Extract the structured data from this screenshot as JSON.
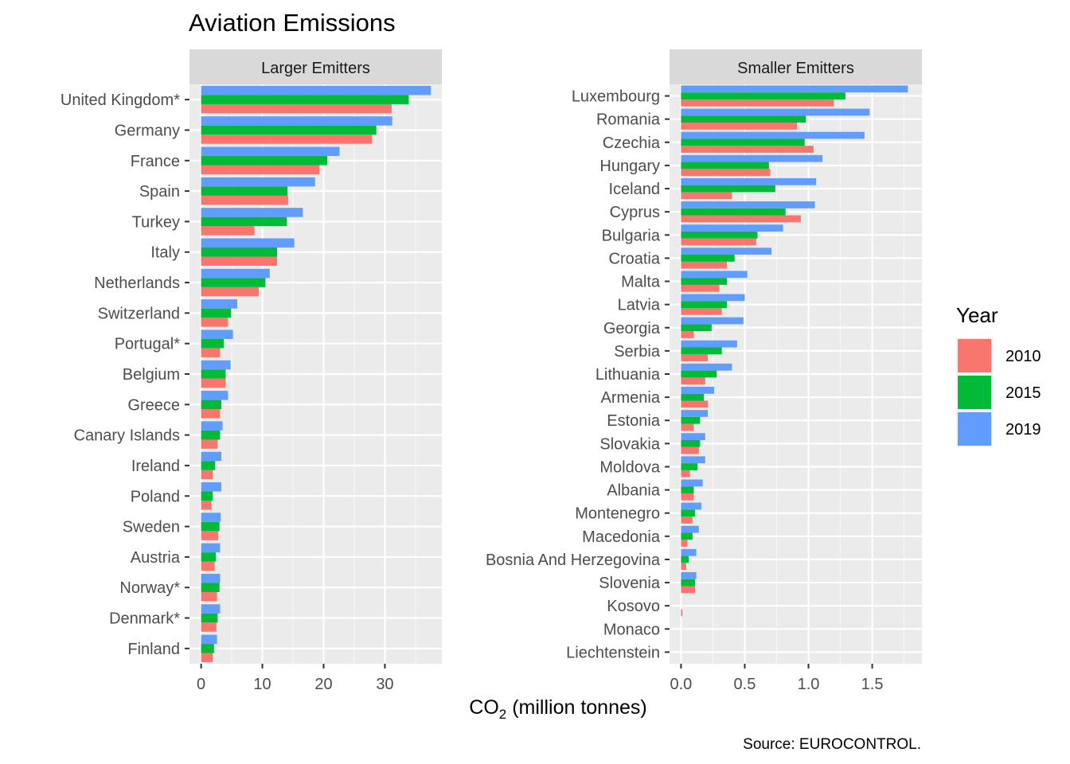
{
  "title": "Aviation Emissions",
  "x_axis_title": {
    "main": "CO",
    "subscript": "2",
    "rest": "  (million tonnes)"
  },
  "caption": "Source: EUROCONTROL.",
  "legend": {
    "title": "Year",
    "position": "right",
    "items": [
      {
        "label": "2010",
        "color": "#F8766D"
      },
      {
        "label": "2015",
        "color": "#00BA38"
      },
      {
        "label": "2019",
        "color": "#619CFF"
      }
    ]
  },
  "chart_data": [
    {
      "type": "bar",
      "orientation": "horizontal",
      "facet": "Larger Emitters",
      "xlabel": "CO2 (million tonnes)",
      "ylabel": "",
      "xlim": [
        -1.9,
        39.3
      ],
      "xticks": [
        0,
        10,
        20,
        30
      ],
      "grid": true,
      "categories": [
        "Finland",
        "Denmark*",
        "Norway*",
        "Austria",
        "Sweden",
        "Poland",
        "Ireland",
        "Canary Islands",
        "Greece",
        "Belgium",
        "Portugal*",
        "Switzerland",
        "Netherlands",
        "Italy",
        "Turkey",
        "Spain",
        "France",
        "Germany",
        "United Kingdom*"
      ],
      "series": [
        {
          "name": "2010",
          "values": [
            1.9,
            2.5,
            2.6,
            2.2,
            2.8,
            1.7,
            1.9,
            2.7,
            3.1,
            4.0,
            3.1,
            4.4,
            9.4,
            12.4,
            8.7,
            14.2,
            19.3,
            27.9,
            31.1
          ]
        },
        {
          "name": "2015",
          "values": [
            2.1,
            2.7,
            3.0,
            2.4,
            3.0,
            1.9,
            2.3,
            3.1,
            3.3,
            4.0,
            3.7,
            4.9,
            10.5,
            12.4,
            14.0,
            14.1,
            20.6,
            28.6,
            33.9
          ]
        },
        {
          "name": "2019",
          "values": [
            2.6,
            3.1,
            3.1,
            3.1,
            3.2,
            3.3,
            3.3,
            3.5,
            4.4,
            4.8,
            5.2,
            5.9,
            11.2,
            15.2,
            16.6,
            18.6,
            22.6,
            31.2,
            37.5
          ]
        }
      ]
    },
    {
      "type": "bar",
      "orientation": "horizontal",
      "facet": "Smaller Emitters",
      "xlabel": "CO2 (million tonnes)",
      "ylabel": "",
      "xlim": [
        -0.09,
        1.89
      ],
      "xticks": [
        0.0,
        0.5,
        1.0,
        1.5
      ],
      "grid": true,
      "categories": [
        "Liechtenstein",
        "Monaco",
        "Kosovo",
        "Slovenia",
        "Bosnia And Herzegovina",
        "Macedonia",
        "Montenegro",
        "Albania",
        "Moldova",
        "Slovakia",
        "Estonia",
        "Armenia",
        "Lithuania",
        "Serbia",
        "Georgia",
        "Latvia",
        "Malta",
        "Croatia",
        "Bulgaria",
        "Cyprus",
        "Iceland",
        "Hungary",
        "Czechia",
        "Romania",
        "Luxembourg"
      ],
      "series": [
        {
          "name": "2010",
          "values": [
            0.0,
            0.0,
            0.01,
            0.11,
            0.04,
            0.05,
            0.09,
            0.1,
            0.07,
            0.14,
            0.1,
            0.21,
            0.19,
            0.21,
            0.1,
            0.32,
            0.3,
            0.36,
            0.59,
            0.94,
            0.4,
            0.7,
            1.04,
            0.91,
            1.2
          ]
        },
        {
          "name": "2015",
          "values": [
            0.0,
            0.0,
            0.0,
            0.11,
            0.06,
            0.09,
            0.11,
            0.1,
            0.13,
            0.15,
            0.15,
            0.18,
            0.28,
            0.32,
            0.24,
            0.36,
            0.36,
            0.42,
            0.6,
            0.82,
            0.74,
            0.69,
            0.97,
            0.98,
            1.29
          ]
        },
        {
          "name": "2019",
          "values": [
            0.0,
            0.0,
            0.0,
            0.12,
            0.12,
            0.14,
            0.16,
            0.17,
            0.19,
            0.19,
            0.21,
            0.26,
            0.4,
            0.44,
            0.49,
            0.5,
            0.52,
            0.71,
            0.8,
            1.05,
            1.06,
            1.11,
            1.44,
            1.48,
            1.78
          ]
        }
      ]
    }
  ]
}
